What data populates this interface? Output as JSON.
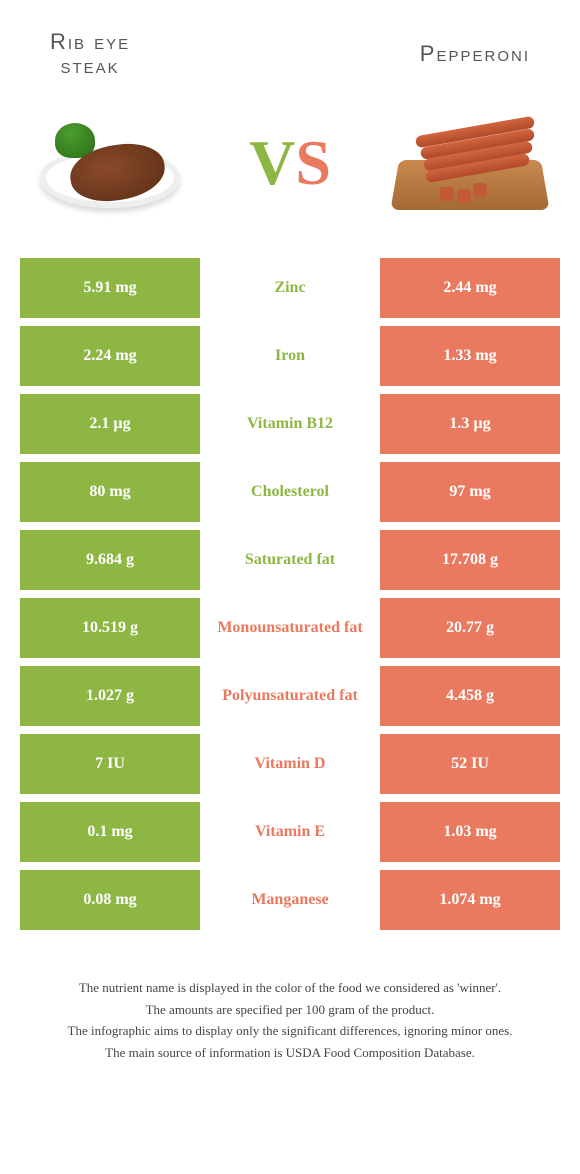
{
  "header": {
    "left_title_line1": "Rib eye",
    "left_title_line2": "steak",
    "right_title": "Pepperoni",
    "vs_v": "V",
    "vs_s": "S"
  },
  "colors": {
    "left": "#8db742",
    "right": "#e97a5f",
    "background": "#ffffff"
  },
  "rows": [
    {
      "left": "5.91 mg",
      "label": "Zinc",
      "right": "2.44 mg",
      "winner": "left"
    },
    {
      "left": "2.24 mg",
      "label": "Iron",
      "right": "1.33 mg",
      "winner": "left"
    },
    {
      "left": "2.1 µg",
      "label": "Vitamin B12",
      "right": "1.3 µg",
      "winner": "left"
    },
    {
      "left": "80 mg",
      "label": "Cholesterol",
      "right": "97 mg",
      "winner": "left"
    },
    {
      "left": "9.684 g",
      "label": "Saturated fat",
      "right": "17.708 g",
      "winner": "left"
    },
    {
      "left": "10.519 g",
      "label": "Monounsaturated fat",
      "right": "20.77 g",
      "winner": "right"
    },
    {
      "left": "1.027 g",
      "label": "Polyunsaturated fat",
      "right": "4.458 g",
      "winner": "right"
    },
    {
      "left": "7 IU",
      "label": "Vitamin D",
      "right": "52 IU",
      "winner": "right"
    },
    {
      "left": "0.1 mg",
      "label": "Vitamin E",
      "right": "1.03 mg",
      "winner": "right"
    },
    {
      "left": "0.08 mg",
      "label": "Manganese",
      "right": "1.074 mg",
      "winner": "right"
    }
  ],
  "footer": {
    "line1": "The nutrient name is displayed in the color of the food we considered as 'winner'.",
    "line2": "The amounts are specified per 100 gram of the product.",
    "line3": "The infographic aims to display only the significant differences, ignoring minor ones.",
    "line4": "The main source of information is USDA Food Composition Database."
  }
}
